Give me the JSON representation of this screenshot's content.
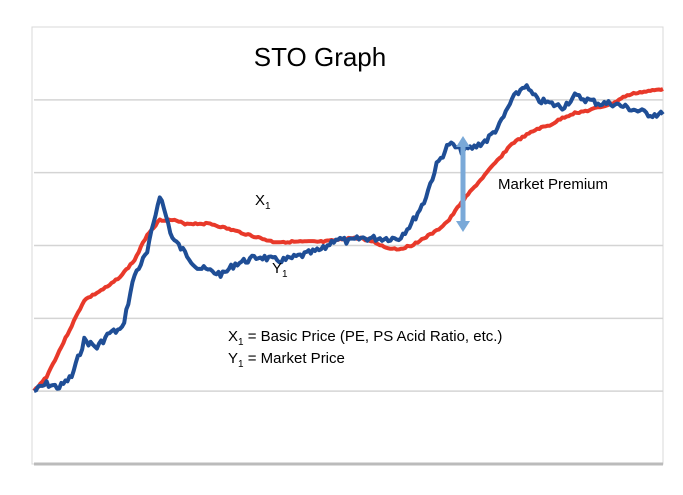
{
  "chart_data": {
    "type": "line",
    "title": "STO Graph",
    "xlabel": "",
    "ylabel": "",
    "ylim": [
      0,
      6
    ],
    "grid": true,
    "gridlines": 6,
    "series": [
      {
        "name": "X",
        "name_sub": "1",
        "color": "#e8392a",
        "points": [
          [
            0,
            1.0
          ],
          [
            6,
            1.2
          ],
          [
            12,
            1.55
          ],
          [
            18,
            1.9
          ],
          [
            24,
            2.25
          ],
          [
            30,
            2.35
          ],
          [
            36,
            2.45
          ],
          [
            42,
            2.6
          ],
          [
            48,
            2.8
          ],
          [
            54,
            3.15
          ],
          [
            60,
            3.35
          ],
          [
            66,
            3.35
          ],
          [
            72,
            3.3
          ],
          [
            78,
            3.3
          ],
          [
            84,
            3.3
          ],
          [
            90,
            3.25
          ],
          [
            96,
            3.2
          ],
          [
            102,
            3.15
          ],
          [
            108,
            3.1
          ],
          [
            114,
            3.05
          ],
          [
            120,
            3.05
          ],
          [
            126,
            3.05
          ],
          [
            132,
            3.05
          ],
          [
            138,
            3.05
          ],
          [
            144,
            3.07
          ],
          [
            150,
            3.1
          ],
          [
            156,
            3.1
          ],
          [
            162,
            3.05
          ],
          [
            168,
            2.97
          ],
          [
            174,
            2.95
          ],
          [
            180,
            3.0
          ],
          [
            186,
            3.1
          ],
          [
            192,
            3.2
          ],
          [
            198,
            3.35
          ],
          [
            204,
            3.6
          ],
          [
            210,
            3.8
          ],
          [
            216,
            4.0
          ],
          [
            222,
            4.2
          ],
          [
            228,
            4.4
          ],
          [
            234,
            4.5
          ],
          [
            240,
            4.6
          ],
          [
            246,
            4.65
          ],
          [
            252,
            4.75
          ],
          [
            258,
            4.82
          ],
          [
            264,
            4.85
          ],
          [
            270,
            4.9
          ],
          [
            276,
            4.95
          ],
          [
            282,
            5.05
          ],
          [
            288,
            5.1
          ],
          [
            294,
            5.12
          ],
          [
            300,
            5.15
          ]
        ]
      },
      {
        "name": "Y",
        "name_sub": "1",
        "color": "#1f4e96",
        "points": [
          [
            0,
            1.0
          ],
          [
            6,
            1.1
          ],
          [
            12,
            1.05
          ],
          [
            18,
            1.2
          ],
          [
            24,
            1.7
          ],
          [
            30,
            1.6
          ],
          [
            36,
            1.8
          ],
          [
            42,
            1.85
          ],
          [
            48,
            2.6
          ],
          [
            54,
            2.9
          ],
          [
            60,
            3.7
          ],
          [
            66,
            3.1
          ],
          [
            72,
            2.9
          ],
          [
            78,
            2.7
          ],
          [
            84,
            2.65
          ],
          [
            90,
            2.6
          ],
          [
            96,
            2.75
          ],
          [
            102,
            2.8
          ],
          [
            108,
            2.85
          ],
          [
            114,
            2.8
          ],
          [
            120,
            2.8
          ],
          [
            126,
            2.85
          ],
          [
            132,
            2.9
          ],
          [
            138,
            2.95
          ],
          [
            144,
            3.1
          ],
          [
            150,
            3.05
          ],
          [
            156,
            3.1
          ],
          [
            162,
            3.1
          ],
          [
            168,
            3.1
          ],
          [
            174,
            3.1
          ],
          [
            180,
            3.3
          ],
          [
            186,
            3.6
          ],
          [
            192,
            4.1
          ],
          [
            198,
            4.4
          ],
          [
            204,
            4.3
          ],
          [
            210,
            4.35
          ],
          [
            216,
            4.45
          ],
          [
            222,
            4.65
          ],
          [
            228,
            5.0
          ],
          [
            234,
            5.2
          ],
          [
            240,
            5.0
          ],
          [
            246,
            4.95
          ],
          [
            252,
            4.9
          ],
          [
            258,
            5.05
          ],
          [
            264,
            5.0
          ],
          [
            270,
            4.95
          ],
          [
            276,
            4.95
          ],
          [
            282,
            4.9
          ],
          [
            288,
            4.85
          ],
          [
            294,
            4.8
          ],
          [
            300,
            4.8
          ]
        ]
      }
    ],
    "annotations": {
      "x1_label": "X",
      "x1_sub": "1",
      "y1_label": "Y",
      "y1_sub": "1",
      "market_premium": "Market Premium",
      "legend_x_prefix": "X",
      "legend_x_sub": "1",
      "legend_x_text": " = Basic Price (PE, PS Acid Ratio, etc.)",
      "legend_y_prefix": "Y",
      "legend_y_sub": "1",
      "legend_y_text": " = Market Price",
      "arrow_color": "#7aa9d8"
    }
  }
}
